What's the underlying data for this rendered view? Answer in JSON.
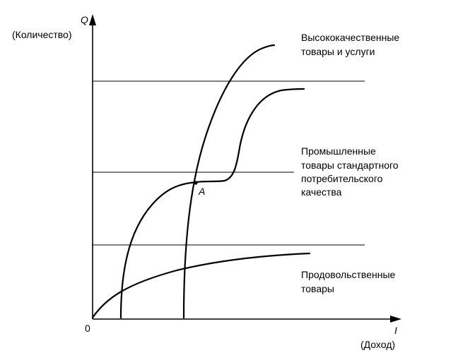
{
  "y_axis": {
    "symbol": "Q",
    "name": "(Количество)"
  },
  "x_axis": {
    "symbol": "I",
    "name": "(Доход)"
  },
  "origin_label": "0",
  "point_label": "A",
  "zones": {
    "high_quality": [
      "Высококачественные",
      "товары и услуги"
    ],
    "standard_industrial": [
      "Промышленные",
      "товары стандартного",
      "потребительского",
      "качества"
    ],
    "food": [
      "Продовольственные",
      "товары"
    ]
  }
}
